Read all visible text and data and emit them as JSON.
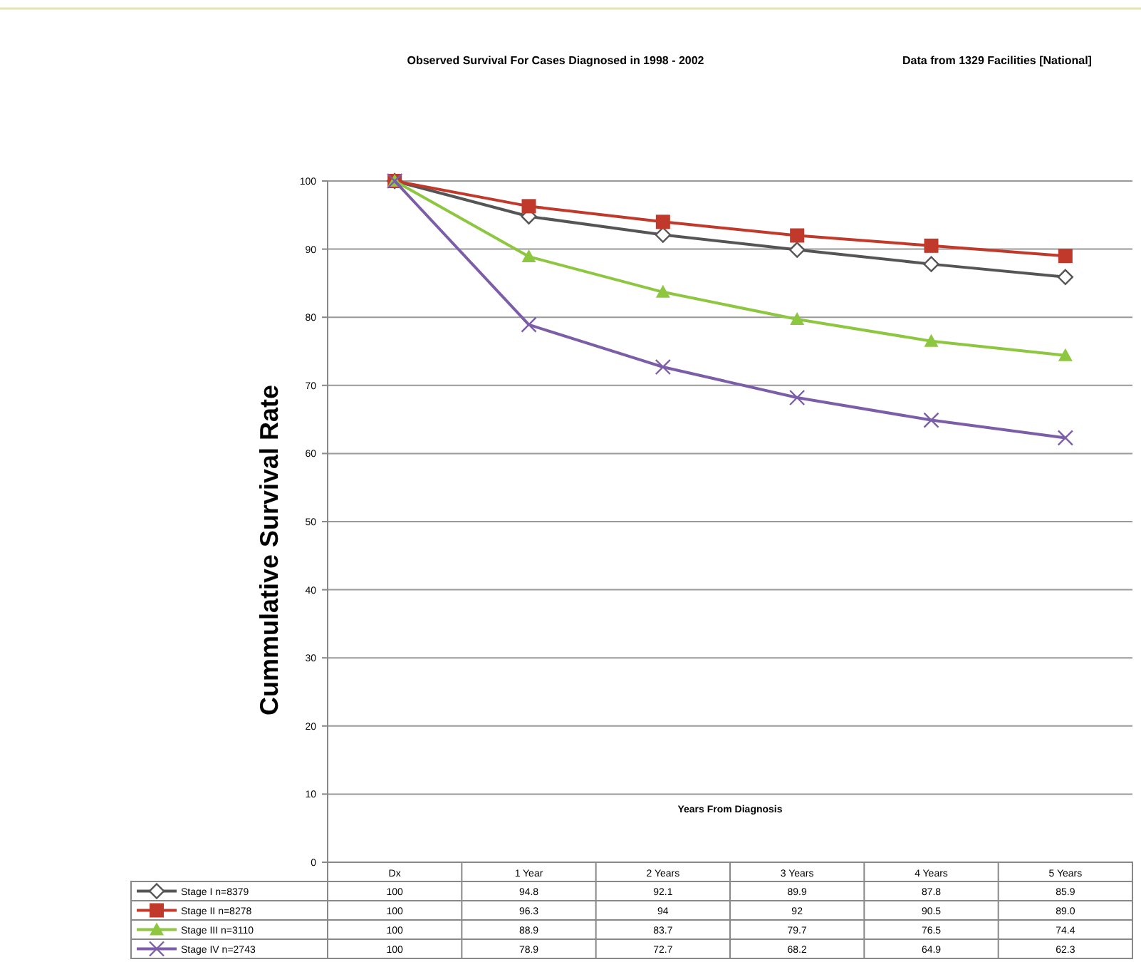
{
  "chart_data": {
    "type": "line",
    "title": "Observed Survival For  Cases Diagnosed in 1998 - 2002",
    "subtitle": "Data from 1329 Facilities  [National]",
    "xlabel": "Years From Diagnosis",
    "ylabel": "Cummulative Survival Rate",
    "categories": [
      "Dx",
      "1 Year",
      "2 Years",
      "3 Years",
      "4 Years",
      "5 Years"
    ],
    "series": [
      {
        "name": "Stage I n=8379",
        "color": "#555555",
        "marker": "diamond",
        "values": [
          100,
          94.8,
          92.1,
          89.9,
          87.8,
          85.9
        ],
        "value_labels": [
          "100",
          "94.8",
          "92.1",
          "89.9",
          "87.8",
          "85.9"
        ]
      },
      {
        "name": "Stage II n=8278",
        "color": "#c0392b",
        "marker": "square",
        "values": [
          100,
          96.3,
          94,
          92,
          90.5,
          89.0
        ],
        "value_labels": [
          "100",
          "96.3",
          "94",
          "92",
          "90.5",
          "89.0"
        ]
      },
      {
        "name": "Stage III n=3110",
        "color": "#8dc63f",
        "marker": "triangle",
        "values": [
          100,
          88.9,
          83.7,
          79.7,
          76.5,
          74.4
        ],
        "value_labels": [
          "100",
          "88.9",
          "83.7",
          "79.7",
          "76.5",
          "74.4"
        ]
      },
      {
        "name": "Stage IV n=2743",
        "color": "#7b5ea7",
        "marker": "cross",
        "values": [
          100,
          78.9,
          72.7,
          68.2,
          64.9,
          62.3
        ],
        "value_labels": [
          "100",
          "78.9",
          "72.7",
          "68.2",
          "64.9",
          "62.3"
        ]
      }
    ],
    "ylim": [
      0,
      100
    ],
    "yticks": [
      0,
      10,
      20,
      30,
      40,
      50,
      60,
      70,
      80,
      90,
      100
    ],
    "grid": "y",
    "legend": "bottom"
  }
}
